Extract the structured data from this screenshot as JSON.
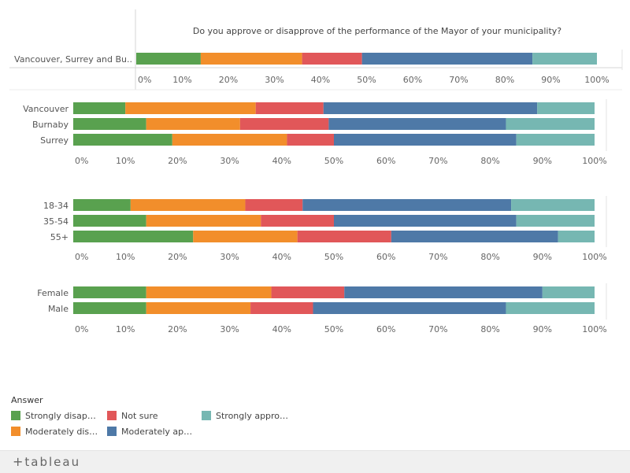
{
  "chart_data": {
    "type": "bar",
    "stacked": "horizontal-100%",
    "title": "Do you approve or disapprove of the performance of the Mayor of your municipality?",
    "answers": [
      "Strongly disapprove",
      "Moderately disapprove",
      "Not sure",
      "Moderately approve",
      "Strongly approve"
    ],
    "answer_labels": [
      "Strongly disap…",
      "Moderately dis…",
      "Not sure",
      "Moderately ap…",
      "Strongly appro…"
    ],
    "colors": [
      "#59a14f",
      "#f28e2b",
      "#e15759",
      "#4e79a7",
      "#76b7b2"
    ],
    "xlim": [
      0,
      100
    ],
    "xticks": [
      "0%",
      "10%",
      "20%",
      "30%",
      "40%",
      "50%",
      "60%",
      "70%",
      "80%",
      "90%",
      "100%"
    ],
    "panels": [
      {
        "group": "total",
        "rows": [
          {
            "label": "Vancouver, Surrey and Bu..",
            "values": [
              14,
              22,
              13,
              37,
              14
            ]
          }
        ]
      },
      {
        "group": "city",
        "rows": [
          {
            "label": "Vancouver",
            "values": [
              10,
              25,
              13,
              41,
              11
            ]
          },
          {
            "label": "Burnaby",
            "values": [
              14,
              18,
              17,
              34,
              17
            ]
          },
          {
            "label": "Surrey",
            "values": [
              19,
              22,
              9,
              35,
              15
            ]
          }
        ]
      },
      {
        "group": "age",
        "rows": [
          {
            "label": "18-34",
            "values": [
              11,
              22,
              11,
              40,
              16
            ]
          },
          {
            "label": "35-54",
            "values": [
              14,
              22,
              14,
              35,
              15
            ]
          },
          {
            "label": "55+",
            "values": [
              23,
              20,
              18,
              32,
              7
            ]
          }
        ]
      },
      {
        "group": "gender",
        "rows": [
          {
            "label": "Female",
            "values": [
              14,
              24,
              14,
              38,
              10
            ]
          },
          {
            "label": "Male",
            "values": [
              14,
              20,
              12,
              37,
              17
            ]
          }
        ]
      }
    ]
  },
  "legend": {
    "title": "Answer"
  },
  "footer": {
    "brand": "tableau",
    "mark": "+"
  }
}
